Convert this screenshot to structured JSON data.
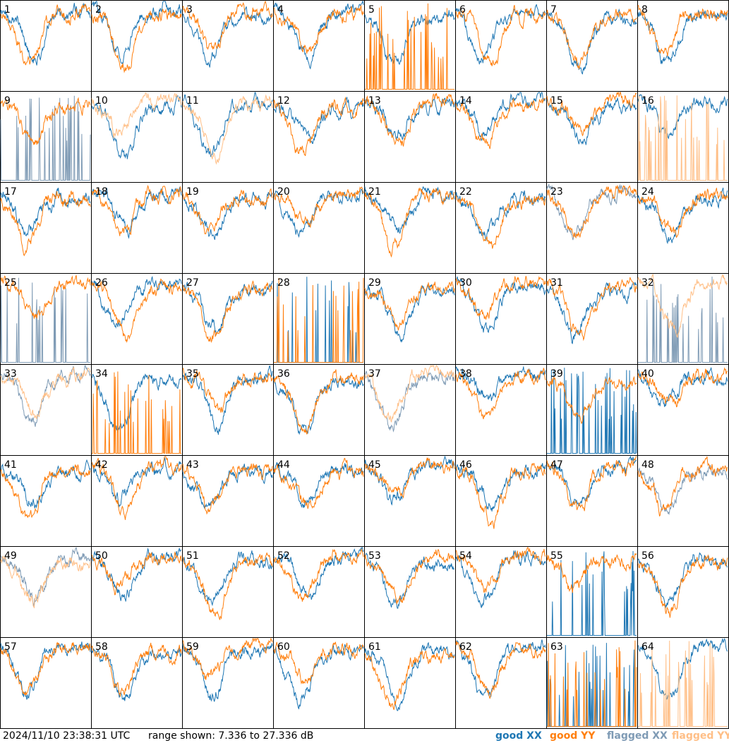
{
  "chart_data": {
    "type": "line",
    "panel_count": 64,
    "columns": 8,
    "rows": 8,
    "panel_labels": [
      "1",
      "2",
      "3",
      "4",
      "5",
      "6",
      "7",
      "8",
      "9",
      "10",
      "11",
      "12",
      "13",
      "14",
      "15",
      "16",
      "17",
      "18",
      "19",
      "20",
      "21",
      "22",
      "23",
      "24",
      "25",
      "26",
      "27",
      "28",
      "29",
      "30",
      "31",
      "32",
      "33",
      "34",
      "35",
      "36",
      "37",
      "38",
      "39",
      "40",
      "41",
      "42",
      "43",
      "44",
      "45",
      "46",
      "47",
      "48",
      "49",
      "50",
      "51",
      "52",
      "53",
      "54",
      "55",
      "56",
      "57",
      "58",
      "59",
      "60",
      "61",
      "62",
      "63",
      "64"
    ],
    "ylim": [
      7.336,
      27.336
    ],
    "y_unit": "dB",
    "grid": false,
    "legend_position": "bottom-right",
    "series": [
      {
        "name": "good XX",
        "color": "#1f77b4"
      },
      {
        "name": "good YY",
        "color": "#ff7f0e"
      },
      {
        "name": "flagged XX",
        "color": "#7f9bb5"
      },
      {
        "name": "flagged YY",
        "color": "#ffbf87"
      }
    ],
    "panel_flags": {
      "5": {
        "xx": "good",
        "yy": "spiky"
      },
      "9": {
        "xx": "flagged_spiky",
        "yy": "good"
      },
      "10": {
        "xx": "good",
        "yy": "flagged"
      },
      "11": {
        "xx": "good",
        "yy": "flagged"
      },
      "16": {
        "xx": "good",
        "yy": "flagged_spiky"
      },
      "23": {
        "xx": "flagged",
        "yy": "good"
      },
      "25": {
        "xx": "flagged_spiky",
        "yy": "good"
      },
      "28": {
        "xx": "spiky",
        "yy": "spiky"
      },
      "32": {
        "xx": "flagged_spiky",
        "yy": "flagged"
      },
      "33": {
        "xx": "flagged",
        "yy": "flagged"
      },
      "34": {
        "xx": "good",
        "yy": "spiky"
      },
      "37": {
        "xx": "flagged",
        "yy": "flagged"
      },
      "39": {
        "xx": "spiky",
        "yy": "good"
      },
      "48": {
        "xx": "flagged",
        "yy": "good"
      },
      "49": {
        "xx": "flagged",
        "yy": "flagged"
      },
      "55": {
        "xx": "spiky",
        "yy": "good"
      },
      "63": {
        "xx": "spiky",
        "yy": "spiky"
      },
      "64": {
        "xx": "good",
        "yy": "flagged_spiky"
      }
    }
  },
  "footer": {
    "timestamp": "2024/11/10 23:38:31 UTC",
    "range_text": "range shown: 7.336 to 27.336 dB"
  },
  "legend": [
    {
      "label": "good XX",
      "color": "#1f77b4"
    },
    {
      "label": "good YY",
      "color": "#ff7f0e"
    },
    {
      "label": "flagged XX",
      "color": "#7f9bb5"
    },
    {
      "label": "flagged YY",
      "color": "#ffbf87"
    }
  ]
}
